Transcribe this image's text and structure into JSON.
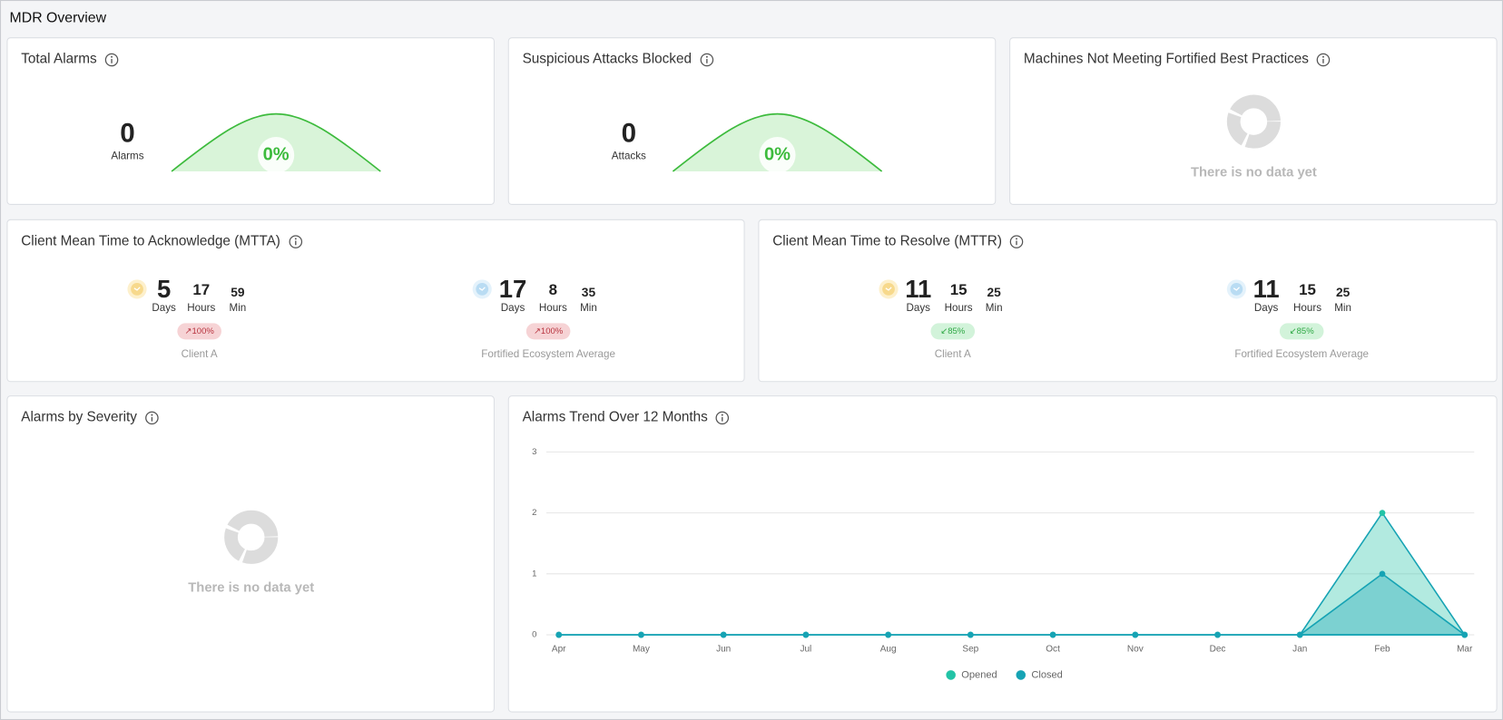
{
  "header": {
    "title": "MDR Overview"
  },
  "total_alarms": {
    "title": "Total Alarms",
    "value": "0",
    "unit": "Alarms",
    "percent": "0%"
  },
  "attacks_blocked": {
    "title": "Suspicious Attacks Blocked",
    "value": "0",
    "unit": "Attacks",
    "percent": "0%"
  },
  "machines": {
    "title": "Machines Not Meeting Fortified Best Practices",
    "empty": "There is no data yet"
  },
  "units": {
    "days": "Days",
    "hours": "Hours",
    "min": "Min"
  },
  "mtta": {
    "title": "Client Mean Time to Acknowledge (MTTA)",
    "groups": [
      {
        "days": "5",
        "hours": "17",
        "min": "59",
        "change": "↗100%",
        "label": "Client A"
      },
      {
        "days": "17",
        "hours": "8",
        "min": "35",
        "change": "↗100%",
        "label": "Fortified Ecosystem Average"
      }
    ]
  },
  "mttr": {
    "title": "Client Mean Time to Resolve (MTTR)",
    "groups": [
      {
        "days": "11",
        "hours": "15",
        "min": "25",
        "change": "↙85%",
        "label": "Client A"
      },
      {
        "days": "11",
        "hours": "15",
        "min": "25",
        "change": "↙85%",
        "label": "Fortified Ecosystem Average"
      }
    ]
  },
  "severity": {
    "title": "Alarms by Severity",
    "empty": "There is no data yet"
  },
  "trend": {
    "title": "Alarms Trend Over 12 Months",
    "type": "line",
    "categories": [
      "Apr",
      "May",
      "Jun",
      "Jul",
      "Aug",
      "Sep",
      "Oct",
      "Nov",
      "Dec",
      "Jan",
      "Feb",
      "Mar"
    ],
    "series": [
      {
        "name": "Opened",
        "color": "#22c3a6",
        "values": [
          0,
          0,
          0,
          0,
          0,
          0,
          0,
          0,
          0,
          0,
          2,
          0
        ]
      },
      {
        "name": "Closed",
        "color": "#16a3b4",
        "values": [
          0,
          0,
          0,
          0,
          0,
          0,
          0,
          0,
          0,
          0,
          1,
          0
        ]
      }
    ],
    "ylim": [
      0,
      3
    ],
    "yticks": [
      0,
      1,
      2,
      3
    ],
    "grid": true
  }
}
